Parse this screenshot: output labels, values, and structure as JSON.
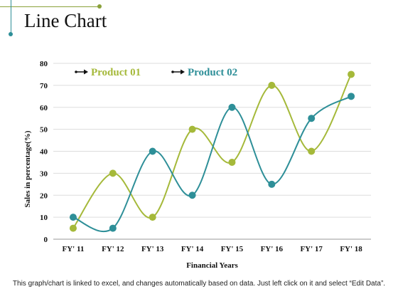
{
  "header": {
    "title": "Line Chart"
  },
  "footer": {
    "note": "This graph/chart is linked to excel, and changes automatically based on data. Just left click on it and select “Edit Data”."
  },
  "colors": {
    "product01": "#a5b93a",
    "product02": "#2e8f98",
    "grid": "#dddddd"
  },
  "chart_data": {
    "type": "line",
    "smooth": true,
    "categories": [
      "FY' 11",
      "FY' 12",
      "FY' 13",
      "FY' 14",
      "FY' 15",
      "FY' 16",
      "FY' 17",
      "FY' 18"
    ],
    "series": [
      {
        "name": "Product 01",
        "values": [
          5,
          30,
          10,
          50,
          35,
          70,
          40,
          75
        ]
      },
      {
        "name": "Product 02",
        "values": [
          10,
          5,
          40,
          20,
          60,
          25,
          55,
          65
        ]
      }
    ],
    "xlabel": "Financial Years",
    "ylabel": "Sales in percentage(%)",
    "ylim": [
      0,
      80
    ],
    "yticks": [
      0,
      10,
      20,
      30,
      40,
      50,
      60,
      70,
      80
    ],
    "grid": true,
    "legend": "top-left"
  }
}
